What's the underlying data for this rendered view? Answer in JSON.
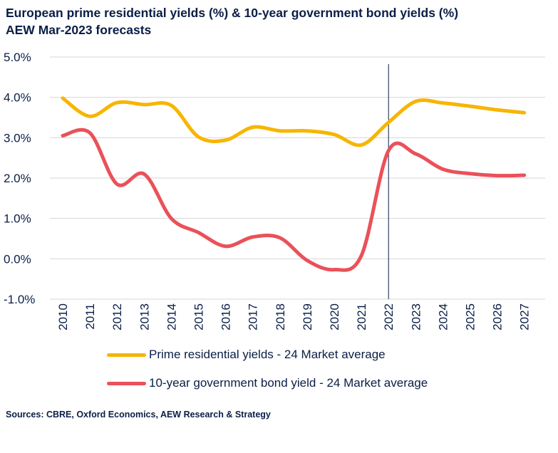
{
  "chart_data": {
    "type": "line",
    "title": "European prime residential yields (%) & 10-year government bond yields (%)",
    "subtitle": "AEW Mar-2023 forecasts",
    "categories": [
      "2010",
      "2011",
      "2012",
      "2013",
      "2014",
      "2015",
      "2016",
      "2017",
      "2018",
      "2019",
      "2020",
      "2021",
      "2022",
      "2023",
      "2024",
      "2025",
      "2026",
      "2027"
    ],
    "y_tick_labels": [
      "5.0%",
      "4.0%",
      "3.0%",
      "2.0%",
      "1.0%",
      "0.0%",
      "-1.0%"
    ],
    "ylim": [
      -1,
      5
    ],
    "grid": "horizontal",
    "forecast_marker_year": "2022",
    "series": [
      {
        "name": "Prime residential yields - 24 Market average",
        "color": "#f7b500",
        "values": [
          3.98,
          3.53,
          3.87,
          3.82,
          3.8,
          3.02,
          2.94,
          3.26,
          3.17,
          3.17,
          3.08,
          2.82,
          3.38,
          3.9,
          3.86,
          3.78,
          3.69,
          3.62
        ]
      },
      {
        "name": "10-year government bond yield - 24 Market average",
        "color": "#ea5159",
        "values": [
          3.05,
          3.12,
          1.85,
          2.1,
          1.0,
          0.65,
          0.31,
          0.54,
          0.52,
          -0.04,
          -0.27,
          0.08,
          2.68,
          2.6,
          2.22,
          2.11,
          2.06,
          2.07
        ]
      }
    ]
  },
  "source": "Sources: CBRE, Oxford Economics, AEW Research & Strategy"
}
